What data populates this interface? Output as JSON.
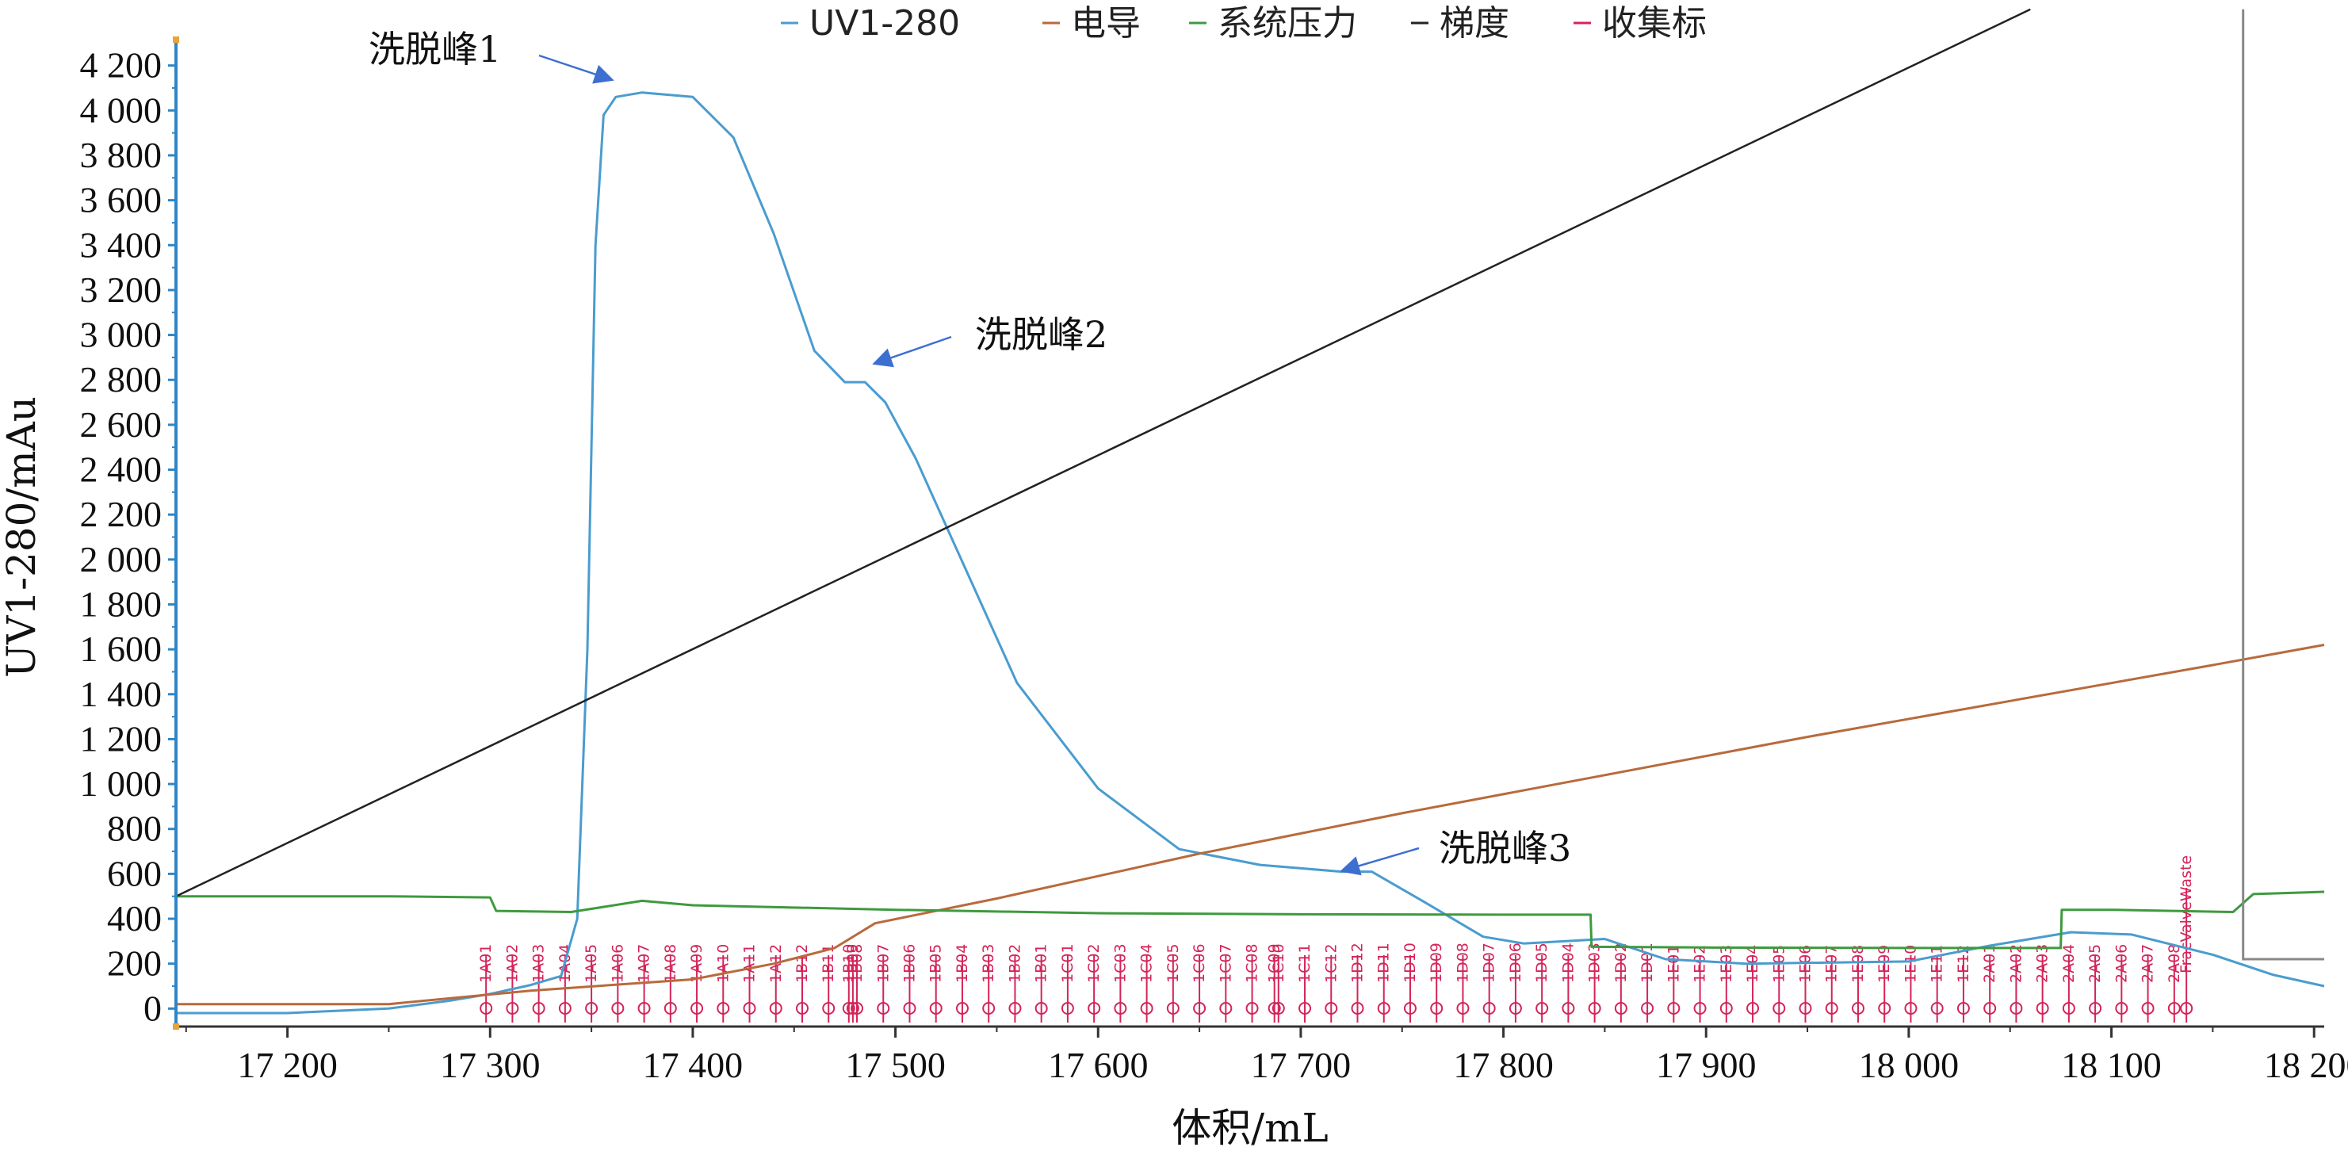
{
  "chart_data": {
    "type": "line",
    "title": "",
    "xlabel": "体积/mL",
    "ylabel": "UV1-280/mAu",
    "xlim": [
      17145,
      18205
    ],
    "ylim": [
      -80,
      4280
    ],
    "x_ticks": [
      {
        "value": 17200,
        "label": "17 200"
      },
      {
        "value": 17300,
        "label": "17 300"
      },
      {
        "value": 17400,
        "label": "17 400"
      },
      {
        "value": 17500,
        "label": "17 500"
      },
      {
        "value": 17600,
        "label": "17 600"
      },
      {
        "value": 17700,
        "label": "17 700"
      },
      {
        "value": 17800,
        "label": "17 800"
      },
      {
        "value": 17900,
        "label": "17 900"
      },
      {
        "value": 18000,
        "label": "18 000"
      },
      {
        "value": 18100,
        "label": "18 100"
      },
      {
        "value": 18200,
        "label": "18 200"
      }
    ],
    "y_ticks": [
      {
        "value": 0,
        "label": "0"
      },
      {
        "value": 200,
        "label": "200"
      },
      {
        "value": 400,
        "label": "400"
      },
      {
        "value": 600,
        "label": "600"
      },
      {
        "value": 800,
        "label": "800"
      },
      {
        "value": 1000,
        "label": "1 000"
      },
      {
        "value": 1200,
        "label": "1 200"
      },
      {
        "value": 1400,
        "label": "1 400"
      },
      {
        "value": 1600,
        "label": "1 600"
      },
      {
        "value": 1800,
        "label": "1 800"
      },
      {
        "value": 2000,
        "label": "2 000"
      },
      {
        "value": 2200,
        "label": "2 200"
      },
      {
        "value": 2400,
        "label": "2 400"
      },
      {
        "value": 2600,
        "label": "2 600"
      },
      {
        "value": 2800,
        "label": "2 800"
      },
      {
        "value": 3000,
        "label": "3 000"
      },
      {
        "value": 3200,
        "label": "3 200"
      },
      {
        "value": 3400,
        "label": "3 400"
      },
      {
        "value": 3600,
        "label": "3 600"
      },
      {
        "value": 3800,
        "label": "3 800"
      },
      {
        "value": 4000,
        "label": "4 000"
      },
      {
        "value": 4200,
        "label": "4 200"
      }
    ],
    "legend_position": "top",
    "series": [
      {
        "name": "UV1-280",
        "color": "#4a9ccf",
        "x": [
          17145,
          17200,
          17250,
          17280,
          17300,
          17320,
          17335,
          17343,
          17348,
          17352,
          17356,
          17362,
          17375,
          17400,
          17420,
          17440,
          17460,
          17475,
          17485,
          17495,
          17510,
          17530,
          17560,
          17600,
          17640,
          17680,
          17720,
          17735,
          17760,
          17790,
          17810,
          17850,
          17880,
          17920,
          18000,
          18040,
          18080,
          18110,
          18150,
          18180,
          18205
        ],
        "y": [
          -20,
          -20,
          0,
          35,
          65,
          105,
          145,
          400,
          1600,
          3400,
          3980,
          4060,
          4080,
          4060,
          3880,
          3450,
          2930,
          2790,
          2790,
          2700,
          2450,
          2050,
          1450,
          980,
          710,
          640,
          610,
          610,
          480,
          320,
          290,
          310,
          220,
          200,
          210,
          280,
          340,
          330,
          240,
          150,
          100
        ]
      },
      {
        "name": "电导",
        "color": "#b86a3c",
        "x": [
          17145,
          17250,
          17320,
          17400,
          17440,
          17470,
          17490,
          17550,
          17650,
          17750,
          17850,
          17950,
          18050,
          18150,
          18205
        ],
        "y": [
          20,
          20,
          80,
          130,
          200,
          270,
          380,
          490,
          690,
          870,
          1040,
          1210,
          1370,
          1530,
          1620
        ]
      },
      {
        "name": "系统压力",
        "color": "#3e9a3e",
        "x": [
          17145,
          17250,
          17300,
          17303,
          17340,
          17375,
          17400,
          17500,
          17600,
          17700,
          17800,
          17843,
          17843.5,
          17900,
          18000,
          18075,
          18075.5,
          18100,
          18160,
          18170,
          18205
        ],
        "y": [
          500,
          500,
          495,
          435,
          430,
          480,
          460,
          440,
          425,
          420,
          418,
          418,
          275,
          272,
          270,
          270,
          440,
          440,
          430,
          510,
          520
        ]
      },
      {
        "name": "梯度",
        "color": "#222222",
        "x": [
          17145,
          18060
        ],
        "y": [
          500,
          4450
        ]
      },
      {
        "name": "收集标",
        "color": "#d4245a",
        "x": [],
        "y": []
      }
    ],
    "gray_marker": {
      "color": "#888888",
      "x": [
        18165,
        18165,
        18170,
        18205
      ],
      "y": [
        4450,
        220,
        220,
        220
      ]
    },
    "fractions": {
      "labels": [
        "1A01",
        "1A02",
        "1A03",
        "1A04",
        "1A05",
        "1A06",
        "1A07",
        "1A08",
        "1A09",
        "1A10",
        "1A11",
        "1A12",
        "1B12",
        "1B11",
        "1B10",
        "1B09",
        "1B08",
        "1B07",
        "1B06",
        "1B05",
        "1B04",
        "1B03",
        "1B02",
        "1B01",
        "1C01",
        "1C02",
        "1C03",
        "1C04",
        "1C05",
        "1C06",
        "1C07",
        "1C08",
        "1C09",
        "1C10",
        "1C11",
        "1C12",
        "1D12",
        "1D11",
        "1D10",
        "1D09",
        "1D08",
        "1D07",
        "1D06",
        "1D05",
        "1D04",
        "1D03",
        "1D02",
        "1D01",
        "1E01",
        "1E02",
        "1E03",
        "1E04",
        "1E05",
        "1E06",
        "1E07",
        "1E08",
        "1E09",
        "1E10",
        "1E11",
        "1E12",
        "2A01",
        "2A02",
        "2A03",
        "2A04",
        "2A05",
        "2A06",
        "2A07",
        "2A08",
        "FracValveWaste"
      ],
      "x": [
        17298,
        17311,
        17324,
        17337,
        17350,
        17363,
        17376,
        17389,
        17402,
        17415,
        17428,
        17441,
        17454,
        17467,
        17477,
        17479,
        17481,
        17494,
        17507,
        17520,
        17533,
        17546,
        17559,
        17572,
        17585,
        17598,
        17611,
        17624,
        17637,
        17650,
        17663,
        17676,
        17687,
        17689,
        17702,
        17715,
        17728,
        17741,
        17754,
        17767,
        17780,
        17793,
        17806,
        17819,
        17832,
        17845,
        17858,
        17871,
        17884,
        17897,
        17910,
        17923,
        17936,
        17949,
        17962,
        17975,
        17988,
        18001,
        18014,
        18027,
        18040,
        18053,
        18066,
        18079,
        18092,
        18105,
        18118,
        18131,
        18137
      ]
    },
    "annotations": [
      {
        "text": "洗脱峰1",
        "x": 17362,
        "y": 4090
      },
      {
        "text": "洗脱峰2",
        "x": 17485,
        "y": 2820
      },
      {
        "text": "洗脱峰3",
        "x": 17728,
        "y": 615
      }
    ]
  }
}
